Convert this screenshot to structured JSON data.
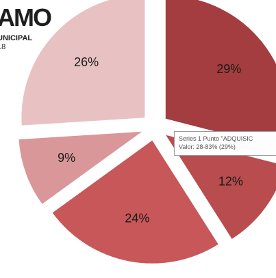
{
  "logo": {
    "line1": "AMO",
    "line2": "UNICIPAL",
    "line3": "18"
  },
  "tooltip": {
    "line1": "Series 1 Punto \"ADQUISIC",
    "line2": "Valor: 28-83% (29%)"
  },
  "chart_data": {
    "type": "pie",
    "exploded": true,
    "slices": [
      {
        "label": "29%",
        "value": 29,
        "color": "#a33d40"
      },
      {
        "label": "12%",
        "value": 12,
        "color": "#b84c4e"
      },
      {
        "label": "24%",
        "value": 24,
        "color": "#c8575a"
      },
      {
        "label": "9%",
        "value": 9,
        "color": "#d9979a"
      },
      {
        "label": "26%",
        "value": 26,
        "color": "#e8c2c3"
      }
    ]
  }
}
